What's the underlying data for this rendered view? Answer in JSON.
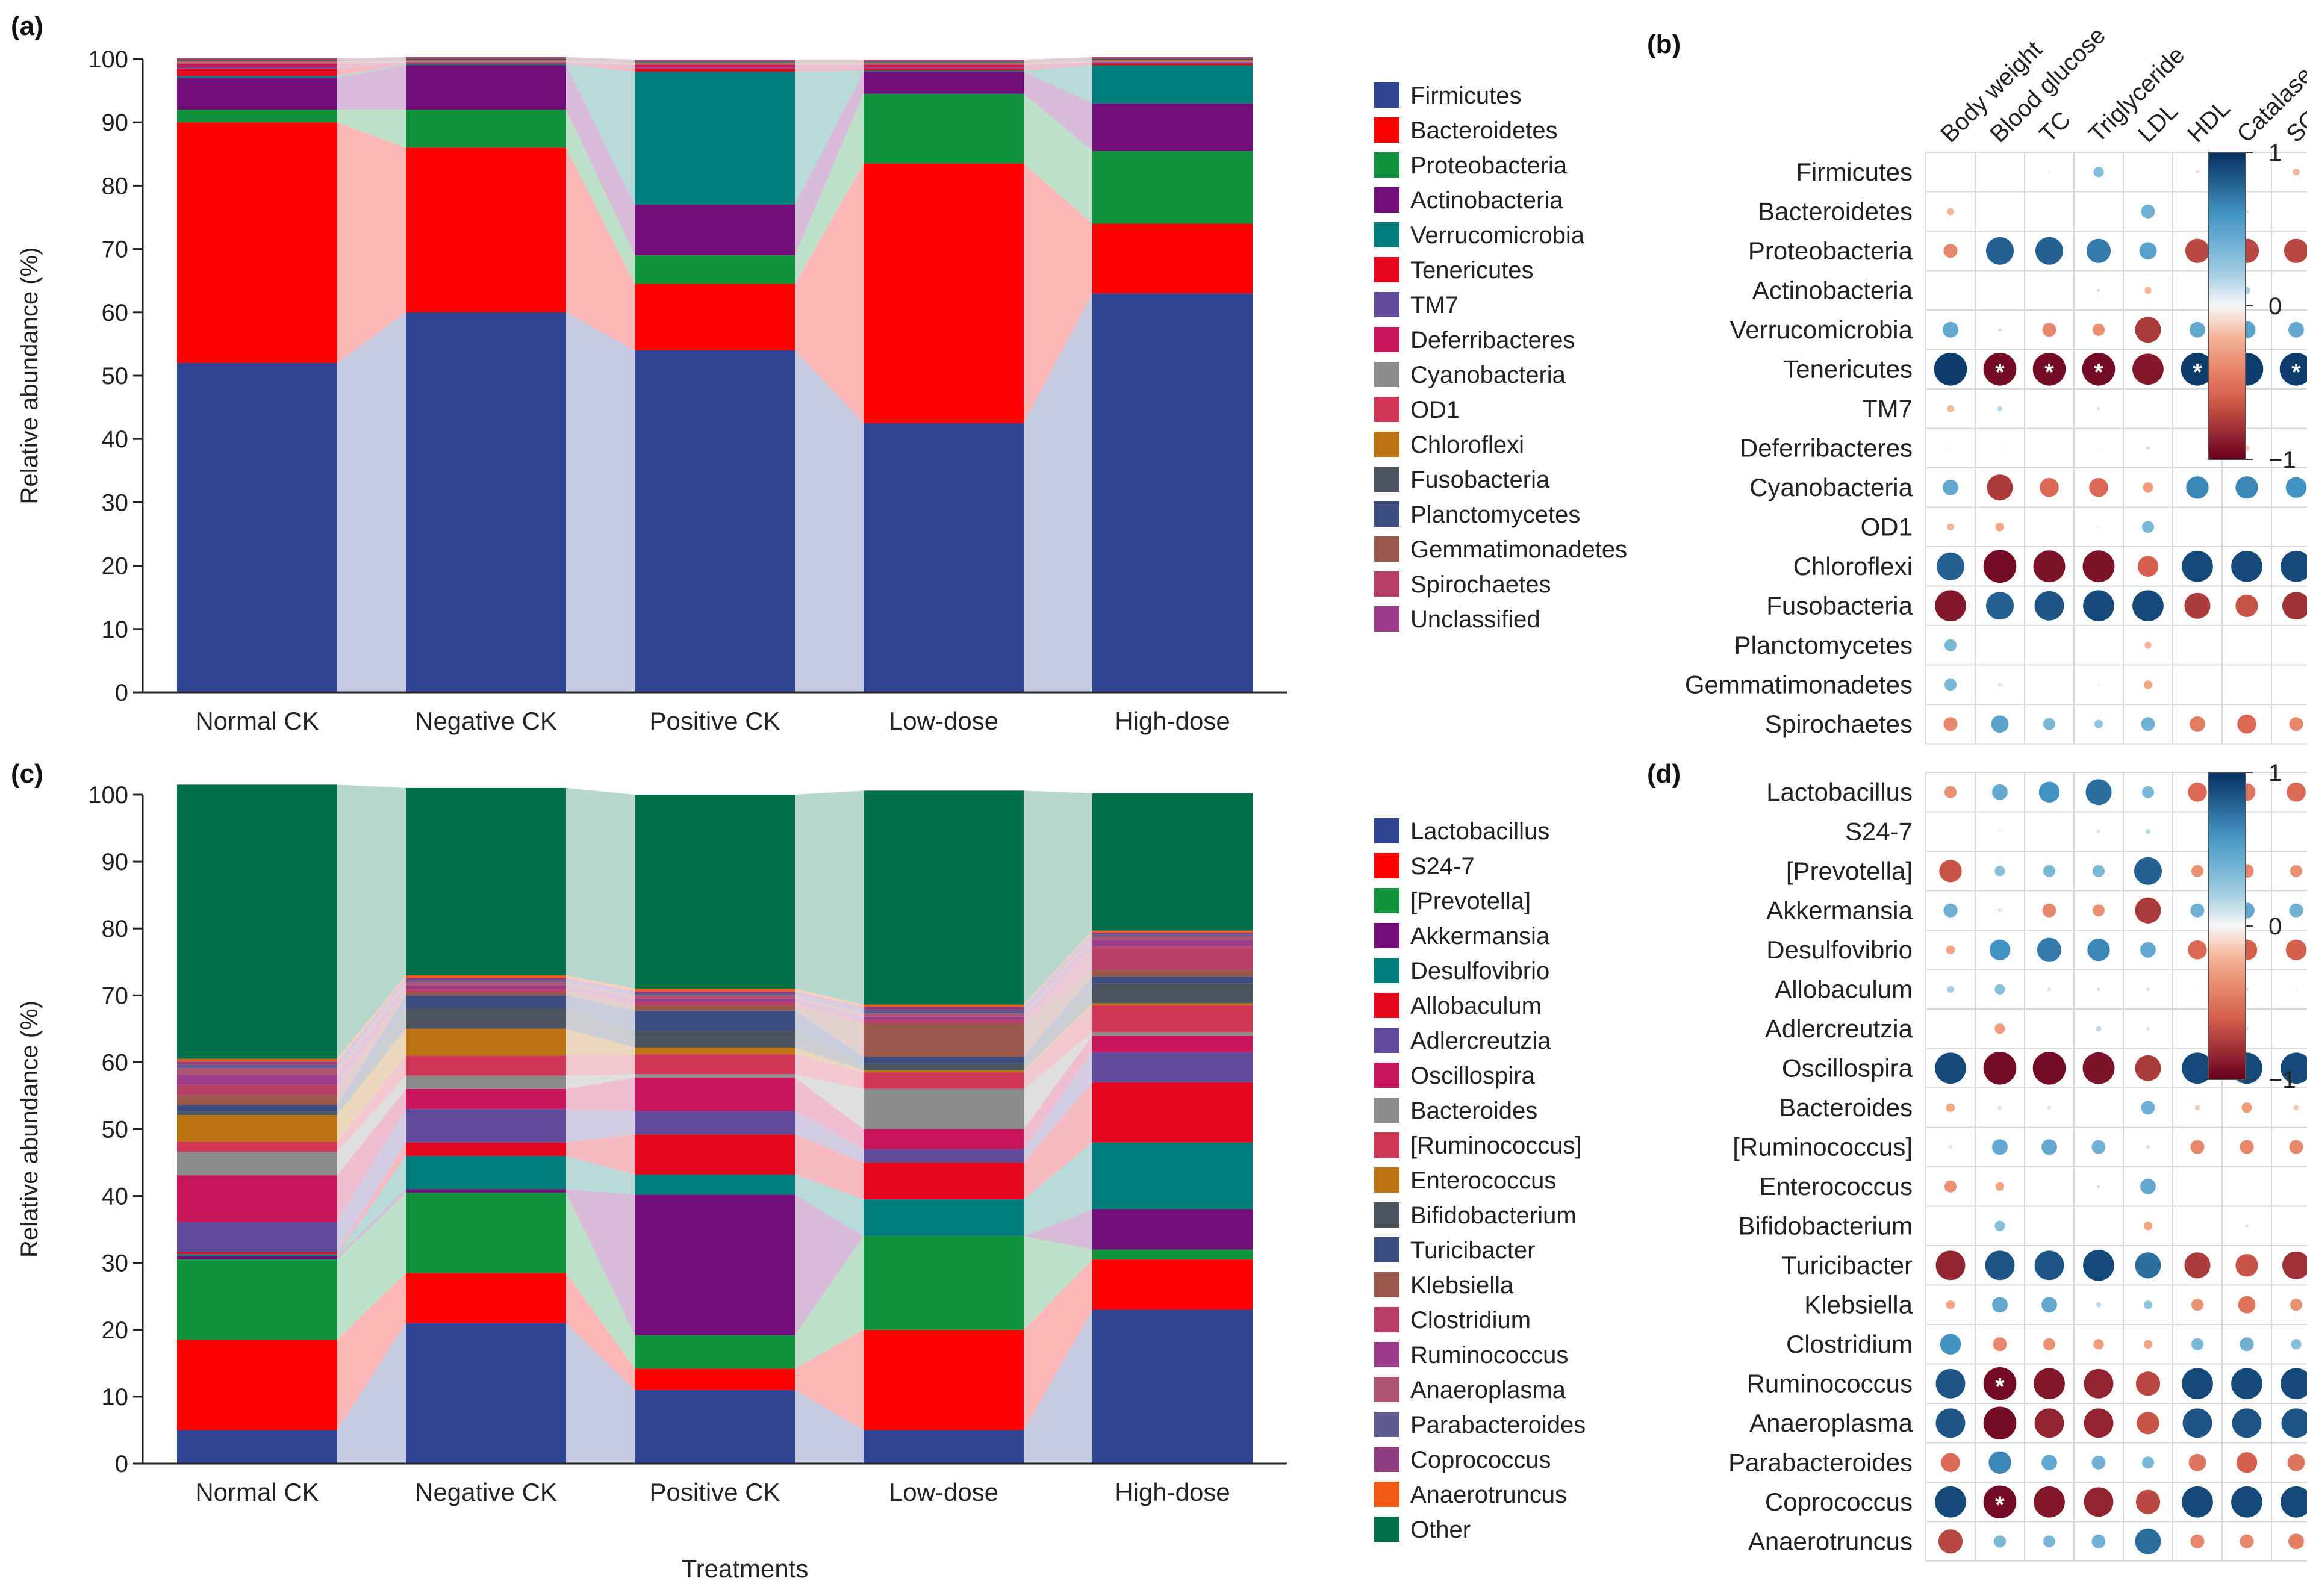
{
  "figure": {
    "x_axis_title": "Treatments",
    "y_axis_title": "Relative abundance (%)"
  },
  "chart_data": [
    {
      "panel": "(a)",
      "type": "bar",
      "stacked": true,
      "title": "",
      "xlabel": "",
      "ylabel": "Relative abundance (%)",
      "ylim": [
        0,
        100
      ],
      "yticks": [
        0,
        10,
        20,
        30,
        40,
        50,
        60,
        70,
        80,
        90,
        100
      ],
      "categories": [
        "Normal CK",
        "Negative CK",
        "Positive CK",
        "Low-dose",
        "High-dose"
      ],
      "legend_position": "right",
      "series": [
        {
          "name": "Firmicutes",
          "color": "#2E4391",
          "values": [
            52,
            60,
            54,
            42.5,
            63
          ]
        },
        {
          "name": "Bacteroidetes",
          "color": "#FF0000",
          "values": [
            38,
            26,
            10.5,
            41,
            11
          ]
        },
        {
          "name": "Proteobacteria",
          "color": "#11923D",
          "values": [
            2,
            6,
            4.5,
            11,
            11.5
          ]
        },
        {
          "name": "Actinobacteria",
          "color": "#720F7A",
          "values": [
            5,
            7,
            8,
            3.5,
            7.5
          ]
        },
        {
          "name": "Verrucomicrobia",
          "color": "#007D7A",
          "values": [
            0.3,
            0.2,
            21,
            0.2,
            6
          ]
        },
        {
          "name": "Tenericutes",
          "color": "#E3061C",
          "values": [
            1.2,
            0.1,
            0.5,
            0.3,
            0.3
          ]
        },
        {
          "name": "TM7",
          "color": "#604A9A",
          "values": [
            0.2,
            0.1,
            0.1,
            0.1,
            0.1
          ]
        },
        {
          "name": "Deferribacteres",
          "color": "#C8145B",
          "values": [
            0.6,
            0.1,
            0.5,
            0.5,
            0.1
          ]
        },
        {
          "name": "Cyanobacteria",
          "color": "#8C8C8C",
          "values": [
            0.1,
            0.1,
            0.1,
            0.1,
            0.1
          ]
        },
        {
          "name": "OD1",
          "color": "#D03756",
          "values": [
            0.1,
            0.1,
            0.1,
            0.1,
            0.1
          ]
        },
        {
          "name": "Chloroflexi",
          "color": "#BC7412",
          "values": [
            0.1,
            0.1,
            0.1,
            0.1,
            0.1
          ]
        },
        {
          "name": "Fusobacteria",
          "color": "#4A535E",
          "values": [
            0.1,
            0.1,
            0.1,
            0.1,
            0.1
          ]
        },
        {
          "name": "Planctomycetes",
          "color": "#3E4D80",
          "values": [
            0.1,
            0.1,
            0.1,
            0.1,
            0.1
          ]
        },
        {
          "name": "Gemmatimonadetes",
          "color": "#98584C",
          "values": [
            0.1,
            0.1,
            0.1,
            0.1,
            0.1
          ]
        },
        {
          "name": "Spirochaetes",
          "color": "#B73F68",
          "values": [
            0.1,
            0.1,
            0.1,
            0.1,
            0.1
          ]
        },
        {
          "name": "Unclassified",
          "color": "#9C3D8A",
          "values": [
            0.1,
            0.1,
            0.1,
            0.1,
            0.1
          ]
        }
      ]
    },
    {
      "panel": "(b)",
      "type": "heatmap",
      "style": "correlation dot plot",
      "columns": [
        "Body weight",
        "Blood glucose",
        "TC",
        "Triglyceride",
        "LDL",
        "HDL",
        "Catalase",
        "SOD"
      ],
      "rows": [
        "Firmicutes",
        "Bacteroidetes",
        "Proteobacteria",
        "Actinobacteria",
        "Verrucomicrobia",
        "Tenericutes",
        "TM7",
        "Deferribacteres",
        "Cyanobacteria",
        "OD1",
        "Chloroflexi",
        "Fusobacteria",
        "Planctomycetes",
        "Gemmatimonadetes",
        "Spirochaetes"
      ],
      "values": [
        [
          0,
          0,
          0.05,
          0.3,
          0,
          -0.1,
          0,
          -0.2
        ],
        [
          -0.2,
          0,
          0,
          0,
          0.4,
          0,
          -0.1,
          0
        ],
        [
          -0.4,
          0.8,
          0.8,
          0.7,
          0.5,
          -0.7,
          -0.7,
          -0.7
        ],
        [
          0,
          0,
          0,
          0.1,
          -0.2,
          0,
          0.2,
          0
        ],
        [
          0.45,
          -0.1,
          -0.4,
          -0.35,
          -0.75,
          0.45,
          0.5,
          0.45
        ],
        [
          0.95,
          -0.95,
          -0.95,
          -0.95,
          -0.9,
          0.95,
          0.95,
          0.95
        ],
        [
          -0.2,
          0.15,
          0,
          0.1,
          0,
          0,
          0,
          0
        ],
        [
          -0.05,
          0.05,
          0,
          0.05,
          0.1,
          0,
          -0.15,
          0
        ],
        [
          0.45,
          -0.75,
          -0.55,
          -0.55,
          -0.3,
          0.65,
          0.65,
          0.6
        ],
        [
          -0.2,
          -0.25,
          0,
          -0.05,
          0.35,
          0,
          0,
          0
        ],
        [
          0.8,
          -0.95,
          -0.92,
          -0.92,
          -0.6,
          0.9,
          0.9,
          0.9
        ],
        [
          -0.9,
          0.8,
          0.85,
          0.9,
          0.9,
          -0.75,
          -0.65,
          -0.8
        ],
        [
          0.35,
          0,
          0,
          0,
          -0.2,
          0,
          0,
          0
        ],
        [
          0.35,
          -0.1,
          0,
          -0.05,
          -0.25,
          0,
          0,
          0
        ],
        [
          -0.4,
          0.5,
          0.35,
          0.25,
          0.4,
          -0.45,
          -0.55,
          -0.4
        ]
      ],
      "significance_marker": "*",
      "significant_cells": [
        [
          5,
          1
        ],
        [
          5,
          2
        ],
        [
          5,
          3
        ],
        [
          5,
          5
        ],
        [
          5,
          7
        ]
      ],
      "colorbar_ticks": [
        "1",
        "0",
        "−1"
      ],
      "colorbar_range": [
        -1,
        1
      ]
    },
    {
      "panel": "(c)",
      "type": "bar",
      "stacked": true,
      "title": "",
      "xlabel": "Treatments",
      "ylabel": "Relative abundance (%)",
      "ylim": [
        0,
        100
      ],
      "yticks": [
        0,
        10,
        20,
        30,
        40,
        50,
        60,
        70,
        80,
        90,
        100
      ],
      "categories": [
        "Normal CK",
        "Negative CK",
        "Positive CK",
        "Low-dose",
        "High-dose"
      ],
      "legend_position": "right",
      "series": [
        {
          "name": "Lactobacillus",
          "color": "#2E4391",
          "values": [
            5,
            21,
            11,
            5,
            23
          ]
        },
        {
          "name": "S24-7",
          "color": "#FF0000",
          "values": [
            13.5,
            7.5,
            3.2,
            15,
            7.5
          ]
        },
        {
          "name": "[Prevotella]",
          "color": "#11923D",
          "values": [
            12,
            12,
            5,
            14,
            1.5
          ]
        },
        {
          "name": "Akkermansia",
          "color": "#720F7A",
          "values": [
            0.5,
            0.5,
            21,
            0,
            6
          ]
        },
        {
          "name": "Desulfovibrio",
          "color": "#007D7A",
          "values": [
            0.3,
            5,
            3,
            5.5,
            10
          ]
        },
        {
          "name": "Allobaculum",
          "color": "#E3061C",
          "values": [
            0.3,
            2,
            6,
            5.5,
            9
          ]
        },
        {
          "name": "Adlercreutzia",
          "color": "#604A9A",
          "values": [
            4.5,
            5,
            3.5,
            2,
            4.5
          ]
        },
        {
          "name": "Oscillospira",
          "color": "#C8145B",
          "values": [
            7,
            3,
            5,
            3,
            2.5
          ]
        },
        {
          "name": "Bacteroides",
          "color": "#8C8C8C",
          "values": [
            3.5,
            2,
            0.5,
            6,
            0.5
          ]
        },
        {
          "name": "[Ruminococcus]",
          "color": "#D03756",
          "values": [
            1.5,
            3,
            3,
            2.5,
            4
          ]
        },
        {
          "name": "Enterococcus",
          "color": "#BC7412",
          "values": [
            4,
            4,
            1,
            0.3,
            0.3
          ]
        },
        {
          "name": "Bifidobacterium",
          "color": "#4A535E",
          "values": [
            0.5,
            3,
            2.5,
            1,
            3
          ]
        },
        {
          "name": "Turicibacter",
          "color": "#3E4D80",
          "values": [
            1,
            2,
            3,
            1,
            1
          ]
        },
        {
          "name": "Klebsiella",
          "color": "#98584C",
          "values": [
            1.5,
            0.5,
            0.8,
            5,
            1
          ]
        },
        {
          "name": "Clostridium",
          "color": "#B73F68",
          "values": [
            1.5,
            0.5,
            0.5,
            0.5,
            3.5
          ]
        },
        {
          "name": "Ruminococcus",
          "color": "#9C3D8A",
          "values": [
            1.5,
            0.5,
            0.5,
            0.5,
            1
          ]
        },
        {
          "name": "Anaeroplasma",
          "color": "#AC5470",
          "values": [
            1,
            0.5,
            0.5,
            0.5,
            0.5
          ]
        },
        {
          "name": "Parabacteroides",
          "color": "#5E5A92",
          "values": [
            0.5,
            0.3,
            0.3,
            0.5,
            0.3
          ]
        },
        {
          "name": "Coprococcus",
          "color": "#8E3D80",
          "values": [
            0.5,
            0.3,
            0.3,
            0.5,
            0.3
          ]
        },
        {
          "name": "Anaerotruncus",
          "color": "#F15A14",
          "values": [
            0.4,
            0.4,
            0.4,
            0.3,
            0.3
          ]
        },
        {
          "name": "Other",
          "color": "#00704A",
          "values": [
            41,
            28,
            29,
            32,
            20.5
          ]
        }
      ]
    },
    {
      "panel": "(d)",
      "type": "heatmap",
      "style": "correlation dot plot",
      "columns": [
        "Body weight",
        "Blood glucose",
        "TC",
        "Triglyceride",
        "LDL",
        "HDL",
        "Catalase",
        "SOD"
      ],
      "rows": [
        "Lactobacillus",
        "S24-7",
        "[Prevotella]",
        "Akkermansia",
        "Desulfovibrio",
        "Allobaculum",
        "Adlercreutzia",
        "Oscillospira",
        "Bacteroides",
        "[Ruminococcus]",
        "Enterococcus",
        "Bifidobacterium",
        "Turicibacter",
        "Klebsiella",
        "Clostridium",
        "Ruminococcus",
        "Anaeroplasma",
        "Parabacteroides",
        "Coprococcus",
        "Anaerotruncus"
      ],
      "values": [
        [
          -0.35,
          0.45,
          0.6,
          0.75,
          0.35,
          -0.55,
          -0.5,
          -0.55
        ],
        [
          0,
          -0.05,
          0,
          -0.1,
          0.15,
          0,
          -0.05,
          0
        ],
        [
          -0.65,
          0.3,
          0.35,
          0.35,
          0.8,
          -0.35,
          -0.4,
          -0.35
        ],
        [
          0.4,
          -0.1,
          -0.4,
          -0.35,
          -0.75,
          0.4,
          0.45,
          0.4
        ],
        [
          -0.25,
          0.6,
          0.7,
          0.65,
          0.45,
          -0.55,
          -0.6,
          -0.6
        ],
        [
          0.2,
          0.3,
          0.1,
          0.1,
          0.1,
          -0.05,
          -0.1,
          -0.05
        ],
        [
          0,
          -0.3,
          0,
          0.15,
          0.1,
          0,
          0.1,
          0
        ],
        [
          0.9,
          -0.95,
          -0.95,
          -0.92,
          -0.75,
          0.9,
          0.9,
          0.9
        ],
        [
          -0.25,
          0.1,
          0.1,
          0,
          0.4,
          -0.15,
          -0.3,
          -0.15
        ],
        [
          -0.1,
          0.45,
          0.45,
          0.4,
          0.1,
          -0.4,
          -0.4,
          -0.4
        ],
        [
          -0.35,
          -0.25,
          0,
          0.1,
          0.45,
          0,
          0,
          0
        ],
        [
          0,
          0.3,
          0,
          0,
          -0.25,
          0,
          0.1,
          0
        ],
        [
          -0.85,
          0.85,
          0.85,
          0.9,
          0.75,
          -0.75,
          -0.65,
          -0.8
        ],
        [
          -0.25,
          0.45,
          0.45,
          0.15,
          0.25,
          -0.35,
          -0.5,
          -0.35
        ],
        [
          0.6,
          -0.4,
          -0.35,
          -0.3,
          -0.25,
          0.35,
          0.4,
          0.3
        ],
        [
          0.85,
          -0.95,
          -0.9,
          -0.85,
          -0.7,
          0.9,
          0.9,
          0.9
        ],
        [
          0.85,
          -0.95,
          -0.85,
          -0.85,
          -0.65,
          0.85,
          0.85,
          0.85
        ],
        [
          -0.55,
          0.65,
          0.45,
          0.4,
          0.35,
          -0.5,
          -0.6,
          -0.5
        ],
        [
          0.9,
          -0.95,
          -0.9,
          -0.85,
          -0.7,
          0.9,
          0.9,
          0.9
        ],
        [
          -0.7,
          0.35,
          0.35,
          0.4,
          0.75,
          -0.4,
          -0.4,
          -0.45
        ]
      ],
      "significance_marker": "*",
      "significant_cells": [
        [
          15,
          1
        ],
        [
          18,
          1
        ]
      ],
      "colorbar_ticks": [
        "1",
        "0",
        "−1"
      ],
      "colorbar_range": [
        -1,
        1
      ]
    }
  ]
}
